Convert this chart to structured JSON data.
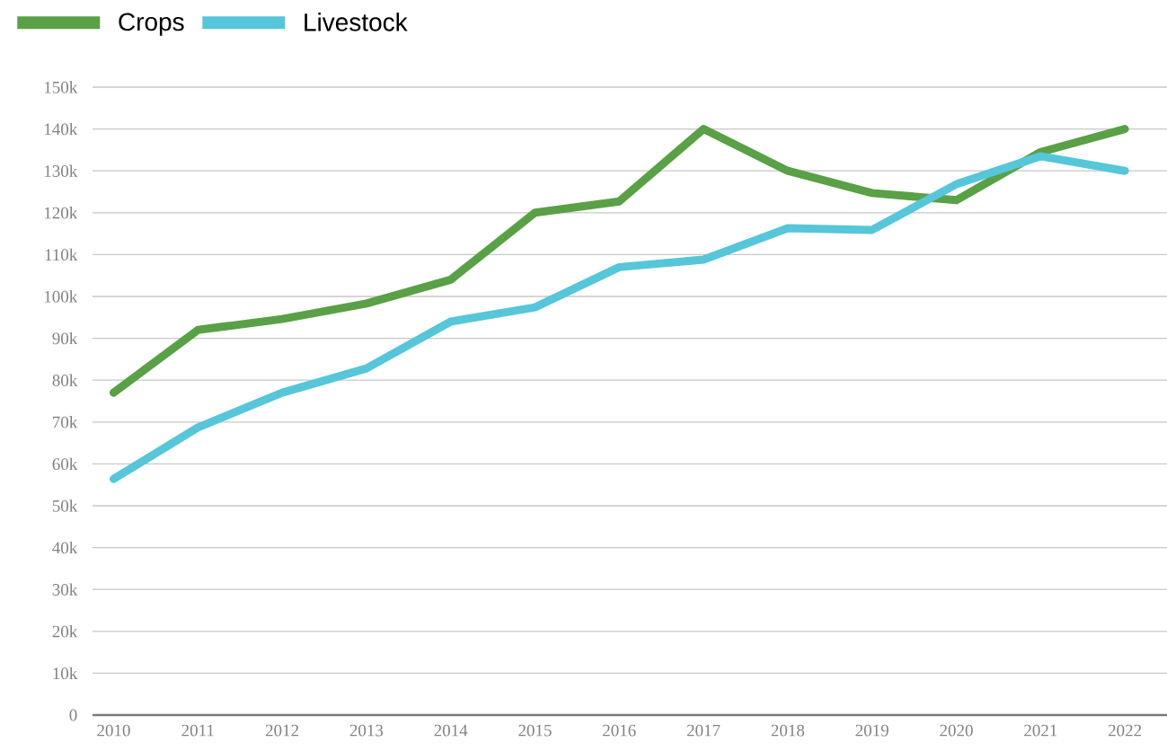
{
  "chart_data": {
    "type": "line",
    "categories": [
      "2010",
      "2011",
      "2012",
      "2013",
      "2014",
      "2015",
      "2016",
      "2017",
      "2018",
      "2019",
      "2020",
      "2021",
      "2022"
    ],
    "series": [
      {
        "name": "Crops",
        "color": "#5aa046",
        "values": [
          77000,
          92000,
          94600,
          98300,
          104000,
          120000,
          122700,
          140000,
          130000,
          124700,
          123000,
          134500,
          140000
        ]
      },
      {
        "name": "Livestock",
        "color": "#56c6d8",
        "values": [
          56400,
          68700,
          77000,
          82800,
          94000,
          97400,
          107000,
          108800,
          116300,
          115900,
          126800,
          133500,
          130000
        ]
      }
    ],
    "ylim": [
      0,
      150000
    ],
    "yticks": [
      {
        "value": 0,
        "label": "0"
      },
      {
        "value": 10000,
        "label": "10k"
      },
      {
        "value": 20000,
        "label": "20k"
      },
      {
        "value": 30000,
        "label": "30k"
      },
      {
        "value": 40000,
        "label": "40k"
      },
      {
        "value": 50000,
        "label": "50k"
      },
      {
        "value": 60000,
        "label": "60k"
      },
      {
        "value": 70000,
        "label": "70k"
      },
      {
        "value": 80000,
        "label": "80k"
      },
      {
        "value": 90000,
        "label": "90k"
      },
      {
        "value": 100000,
        "label": "100k"
      },
      {
        "value": 110000,
        "label": "110k"
      },
      {
        "value": 120000,
        "label": "120k"
      },
      {
        "value": 130000,
        "label": "130k"
      },
      {
        "value": 140000,
        "label": "140k"
      },
      {
        "value": 150000,
        "label": "150k"
      }
    ],
    "grid": "y",
    "legend": "top left",
    "marker": "none",
    "line_style": "solid"
  }
}
